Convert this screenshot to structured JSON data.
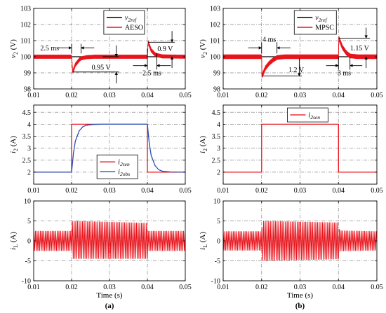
{
  "figure": {
    "panel_labels": [
      "(a)",
      "(b)"
    ]
  },
  "colors": {
    "reference": "#000000",
    "measured": "#e8141c",
    "observer": "#2c4fb4",
    "grid": "#8a8a8a"
  },
  "chart_data": [
    {
      "id": "a_v2",
      "type": "line",
      "xlabel": "",
      "ylabel": "v2 (V)",
      "xlim": [
        0.01,
        0.05
      ],
      "ylim": [
        98,
        103
      ],
      "xticks": [
        "0.01",
        "0.02",
        "0.03",
        "0.04",
        "0.05"
      ],
      "yticks": [
        "98",
        "99",
        "100",
        "101",
        "102",
        "103"
      ],
      "grid": true,
      "legend": "top-center",
      "series": [
        {
          "name": "v2ref",
          "color": "#000000",
          "x": [
            0.01,
            0.05
          ],
          "y": [
            100,
            100
          ]
        },
        {
          "name": "AESO",
          "color": "#e8141c",
          "x": [
            0.01,
            0.02,
            0.0203,
            0.021,
            0.022,
            0.0225,
            0.024,
            0.026,
            0.028,
            0.04,
            0.0402,
            0.041,
            0.042,
            0.0425,
            0.044,
            0.05
          ],
          "y": [
            100,
            100,
            99.05,
            99.5,
            99.8,
            99.9,
            99.97,
            100,
            100,
            100,
            100.9,
            100.4,
            100.15,
            100.1,
            100.02,
            100
          ],
          "ripple": 0.12
        }
      ],
      "annotations": [
        {
          "text": "2.5 ms"
        },
        {
          "text": "0.95 V"
        },
        {
          "text": "0.9 V"
        },
        {
          "text": "2.5 ms"
        }
      ]
    },
    {
      "id": "b_v2",
      "type": "line",
      "xlabel": "",
      "ylabel": "v2 (V)",
      "xlim": [
        0.01,
        0.05
      ],
      "ylim": [
        98,
        103
      ],
      "xticks": [
        "0.01",
        "0.02",
        "0.03",
        "0.04",
        "0.05"
      ],
      "yticks": [
        "98",
        "99",
        "100",
        "101",
        "102",
        "103"
      ],
      "grid": true,
      "legend": "top-center",
      "series": [
        {
          "name": "v2ref",
          "color": "#000000",
          "x": [
            0.01,
            0.05
          ],
          "y": [
            100,
            100
          ]
        },
        {
          "name": "MPSC",
          "color": "#e8141c",
          "x": [
            0.01,
            0.02,
            0.0201,
            0.021,
            0.022,
            0.023,
            0.024,
            0.026,
            0.028,
            0.04,
            0.0401,
            0.041,
            0.042,
            0.043,
            0.045,
            0.05
          ],
          "y": [
            100,
            100,
            98.8,
            99.3,
            99.6,
            99.8,
            99.95,
            100,
            100,
            100,
            101.15,
            100.6,
            100.25,
            100.05,
            100,
            100
          ],
          "ripple": 0.14
        }
      ],
      "annotations": [
        {
          "text": "4 ms"
        },
        {
          "text": "1.2 V"
        },
        {
          "text": "1.15 V"
        },
        {
          "text": "3 ms"
        }
      ]
    },
    {
      "id": "a_i2",
      "type": "line",
      "xlabel": "",
      "ylabel": "i2 (A)",
      "xlim": [
        0.01,
        0.05
      ],
      "ylim": [
        1.5,
        4.8
      ],
      "xticks": [
        "0.01",
        "0.02",
        "0.03",
        "0.04",
        "0.05"
      ],
      "yticks": [
        "2",
        "2.5",
        "3",
        "3.5",
        "4",
        "4.5"
      ],
      "grid": true,
      "legend": "bottom-center",
      "series": [
        {
          "name": "i2sen",
          "color": "#e8141c",
          "x": [
            0.01,
            0.02,
            0.02,
            0.04,
            0.04,
            0.05
          ],
          "y": [
            2,
            2,
            4,
            4,
            2,
            2
          ]
        },
        {
          "name": "i2obs",
          "color": "#2c4fb4",
          "x": [
            0.01,
            0.02,
            0.0205,
            0.021,
            0.022,
            0.023,
            0.024,
            0.026,
            0.028,
            0.04,
            0.0405,
            0.041,
            0.042,
            0.043,
            0.044,
            0.046,
            0.05
          ],
          "y": [
            2,
            2,
            2.8,
            3.3,
            3.72,
            3.9,
            3.96,
            3.99,
            4,
            4,
            3.2,
            2.7,
            2.28,
            2.1,
            2.04,
            2.01,
            2
          ]
        }
      ]
    },
    {
      "id": "b_i2",
      "type": "line",
      "xlabel": "",
      "ylabel": "i2 (A)",
      "xlim": [
        0.01,
        0.05
      ],
      "ylim": [
        1.5,
        4.8
      ],
      "xticks": [
        "0.01",
        "0.02",
        "0.03",
        "0.04",
        "0.05"
      ],
      "yticks": [
        "2",
        "2.5",
        "3",
        "3.5",
        "4",
        "4.5"
      ],
      "grid": true,
      "legend": "top-center",
      "series": [
        {
          "name": "i2sen",
          "color": "#e8141c",
          "x": [
            0.01,
            0.02,
            0.02,
            0.04,
            0.04,
            0.05
          ],
          "y": [
            2,
            2,
            4,
            4,
            2,
            2
          ]
        }
      ]
    },
    {
      "id": "a_iL",
      "type": "line",
      "xlabel": "Time (s)",
      "ylabel": "iL (A)",
      "xlim": [
        0.01,
        0.05
      ],
      "ylim": [
        -10,
        10
      ],
      "xticks": [
        "0.01",
        "0.02",
        "0.03",
        "0.04",
        "0.05"
      ],
      "yticks": [
        "-10",
        "-5",
        "0",
        "5",
        "10"
      ],
      "grid": true,
      "series": [
        {
          "name": "iL",
          "color": "#e8141c",
          "envelope": [
            {
              "x": 0.01,
              "min": -2.5,
              "max": 2.5
            },
            {
              "x": 0.02,
              "min": -2.5,
              "max": 2.5
            },
            {
              "x": 0.0202,
              "min": -4.5,
              "max": 5
            },
            {
              "x": 0.04,
              "min": -4.5,
              "max": 4.5
            },
            {
              "x": 0.0402,
              "min": -2.5,
              "max": 2.5
            },
            {
              "x": 0.05,
              "min": -2.5,
              "max": 2.5
            }
          ]
        }
      ]
    },
    {
      "id": "b_iL",
      "type": "line",
      "xlabel": "Time (s)",
      "ylabel": "iL (A)",
      "xlim": [
        0.01,
        0.05
      ],
      "ylim": [
        -10,
        10
      ],
      "xticks": [
        "0.01",
        "0.02",
        "0.03",
        "0.04",
        "0.05"
      ],
      "yticks": [
        "-10",
        "-5",
        "0",
        "5",
        "10"
      ],
      "grid": true,
      "series": [
        {
          "name": "iL",
          "color": "#e8141c",
          "envelope": [
            {
              "x": 0.01,
              "min": -2.4,
              "max": 2.4
            },
            {
              "x": 0.02,
              "min": -2.4,
              "max": 2.4
            },
            {
              "x": 0.0202,
              "min": -5,
              "max": 5
            },
            {
              "x": 0.04,
              "min": -4.6,
              "max": 4.6
            },
            {
              "x": 0.0403,
              "min": -2.6,
              "max": 2.6
            },
            {
              "x": 0.05,
              "min": -2.4,
              "max": 2.4
            }
          ]
        }
      ]
    }
  ]
}
